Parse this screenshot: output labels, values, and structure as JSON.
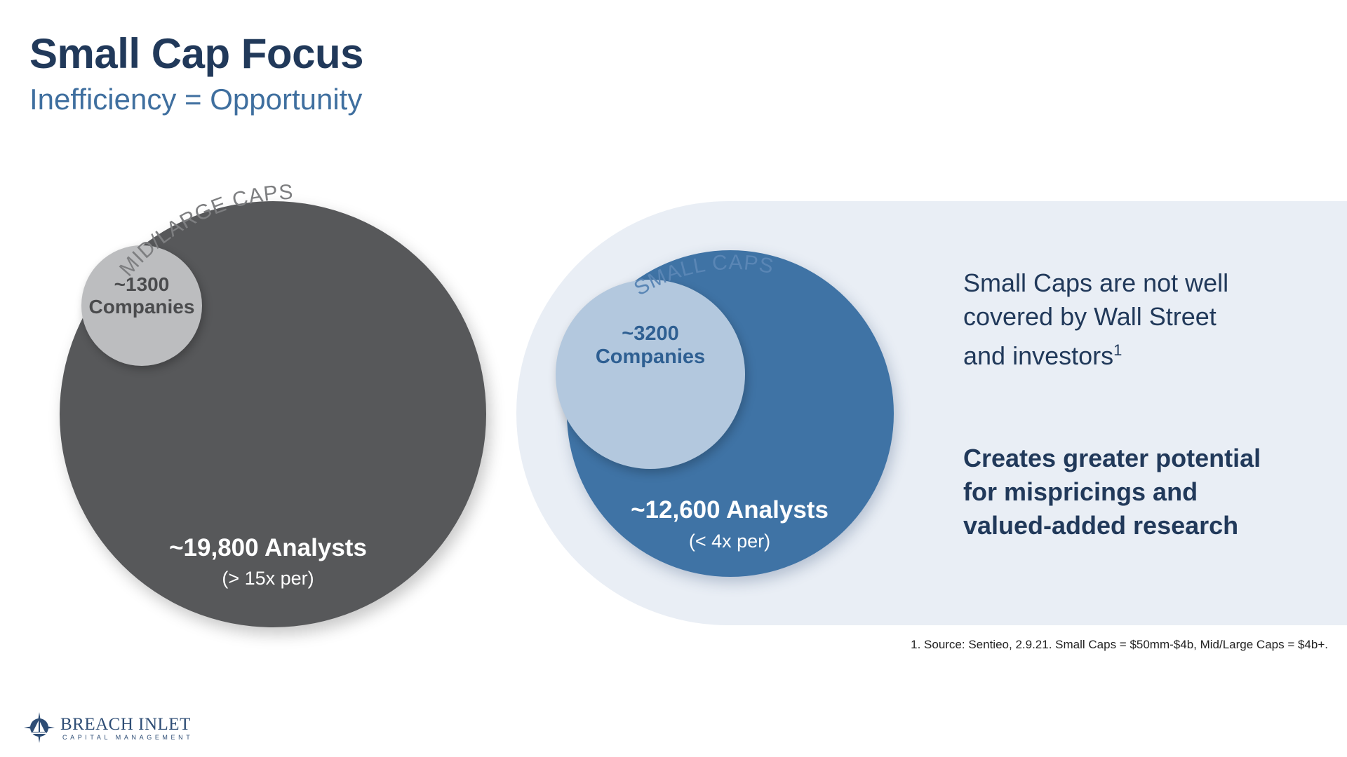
{
  "header": {
    "title": "Small Cap Focus",
    "subtitle": "Inefficiency = Opportunity"
  },
  "mid_large": {
    "arc_label": "MID/LARGE CAPS",
    "companies_count": "~1300",
    "companies_label": "Companies",
    "analysts": "~19,800 Analysts",
    "ratio": "(> 15x per)"
  },
  "small": {
    "arc_label": "SMALL CAPS",
    "companies_count": "~3200",
    "companies_label": "Companies",
    "analysts": "~12,600 Analysts",
    "ratio": "(< 4x per)"
  },
  "messages": {
    "coverage_line1": "Small Caps are not well",
    "coverage_line2": "covered by Wall Street",
    "coverage_line3": "and investors",
    "coverage_footnote_mark": "1",
    "potential_line1": "Creates greater potential",
    "potential_line2": "for mispricings and",
    "potential_line3": "valued-added research"
  },
  "footnote": "1. Source: Sentieo, 2.9.21. Small Caps = $50mm-$4b, Mid/Large Caps = $4b+.",
  "logo": {
    "name": "BREACH INLET",
    "tagline": "CAPITAL MANAGEMENT",
    "icon": "compass-sailboat-icon"
  },
  "colors": {
    "title": "#21395a",
    "subtitle": "#3f6f9f",
    "mid_large_outer": "#57585a",
    "mid_large_inner": "#bcbdbf",
    "small_outer": "#3f73a5",
    "small_inner": "#b3c8de",
    "panel": "#e9eef5"
  }
}
